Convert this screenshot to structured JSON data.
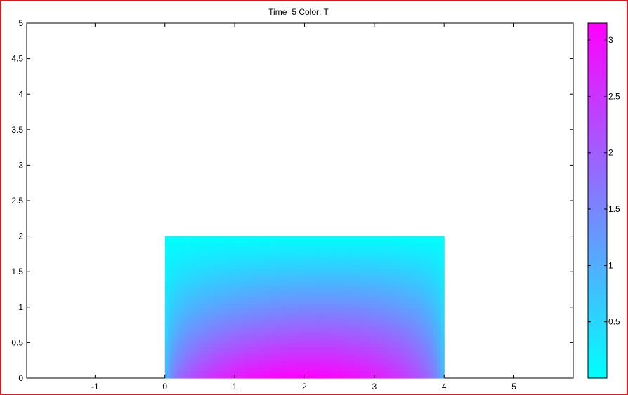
{
  "window": {
    "border_color": "#e8141c"
  },
  "chart_data": {
    "type": "heatmap",
    "title": "Time=5    Color: T",
    "xlabel": "",
    "ylabel": "",
    "xlim": [
      -1.98,
      5.85
    ],
    "ylim": [
      0,
      5
    ],
    "x_ticks": [
      "-1",
      "0",
      "1",
      "2",
      "3",
      "4",
      "5"
    ],
    "y_ticks": [
      "0",
      "0.5",
      "1",
      "1.5",
      "2",
      "2.5",
      "3",
      "3.5",
      "4",
      "4.5",
      "5"
    ],
    "domain": {
      "x": [
        0,
        4
      ],
      "y": [
        0,
        2
      ]
    },
    "colorbar": {
      "min": 0,
      "max": 3.15,
      "ticks": [
        "0.5",
        "1",
        "1.5",
        "2",
        "2.5",
        "3"
      ],
      "color_low": "#00ffff",
      "color_high": "#ff00ff",
      "placement": "right"
    },
    "grid": false
  }
}
